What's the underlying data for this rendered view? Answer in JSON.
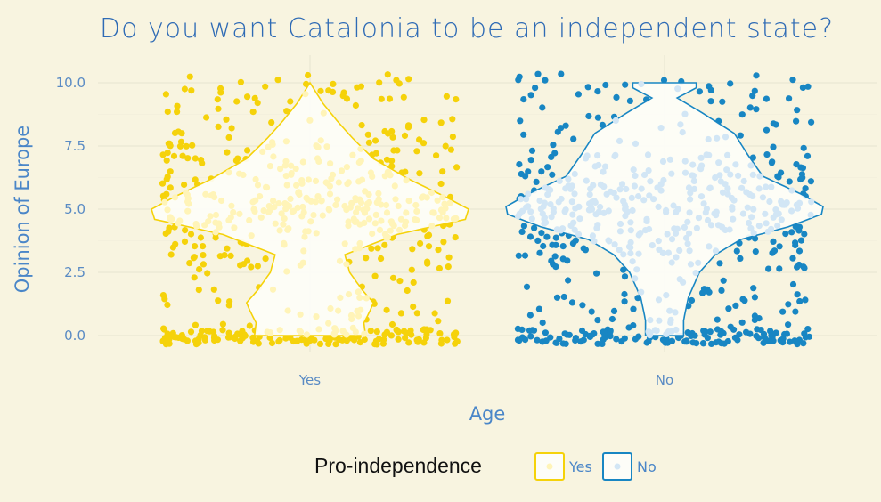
{
  "chart_data": {
    "type": "violin",
    "title": "Do you want Catalonia to be an independent state?",
    "xlabel": "Age",
    "ylabel": "Opinion of Europe",
    "categories": [
      "Yes",
      "No"
    ],
    "ylim": [
      -0.5,
      10.5
    ],
    "yticks": [
      "0.0",
      "2.5",
      "5.0",
      "7.5",
      "10.0"
    ],
    "ytick_values": [
      0,
      2.5,
      5,
      7.5,
      10
    ],
    "grid": true,
    "legend": {
      "title": "Pro-independence",
      "placement": "bottom",
      "entries": [
        "Yes",
        "No"
      ]
    },
    "colors": {
      "background": "#f8f4e0",
      "yes_outline": "#f5d20a",
      "yes_points": "#f5d20a",
      "yes_inner_points": "#fff4b8",
      "no_outline": "#1886c3",
      "no_points": "#1886c3",
      "no_inner_points": "#d2e6f5",
      "violin_fill": "#fdfdf8",
      "grid": "#e6e3cf"
    },
    "series": [
      {
        "name": "Yes",
        "density": [
          [
            0,
            0.35
          ],
          [
            0.5,
            0.34
          ],
          [
            1,
            0.38
          ],
          [
            1.3,
            0.4
          ],
          [
            1.8,
            0.33
          ],
          [
            2.5,
            0.25
          ],
          [
            3.2,
            0.22
          ],
          [
            4,
            0.55
          ],
          [
            4.6,
            0.98
          ],
          [
            5,
            1.0
          ],
          [
            5.5,
            0.85
          ],
          [
            6.2,
            0.62
          ],
          [
            7,
            0.4
          ],
          [
            7.8,
            0.27
          ],
          [
            8.5,
            0.17
          ],
          [
            9.2,
            0.08
          ],
          [
            9.7,
            0.03
          ],
          [
            10,
            0.0
          ]
        ]
      },
      {
        "name": "No",
        "density": [
          [
            0,
            0.12
          ],
          [
            0.6,
            0.12
          ],
          [
            1.5,
            0.15
          ],
          [
            2.5,
            0.22
          ],
          [
            3.2,
            0.32
          ],
          [
            3.8,
            0.48
          ],
          [
            4.3,
            0.78
          ],
          [
            4.8,
            0.99
          ],
          [
            5.1,
            1.0
          ],
          [
            5.6,
            0.86
          ],
          [
            6.3,
            0.62
          ],
          [
            7.2,
            0.52
          ],
          [
            8,
            0.44
          ],
          [
            8.8,
            0.24
          ],
          [
            9.4,
            0.08
          ],
          [
            9.8,
            0.2
          ],
          [
            10,
            0.2
          ]
        ]
      }
    ]
  }
}
